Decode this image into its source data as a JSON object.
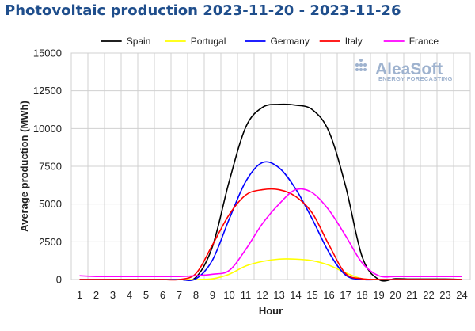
{
  "title": "Photovoltaic production 2023-11-20 - 2023-11-26",
  "logo": {
    "main": "AleaSoft",
    "sub": "ENERGY FORECASTING"
  },
  "chart_data": {
    "type": "line",
    "title": "Photovoltaic production 2023-11-20 - 2023-11-26",
    "xlabel": "Hour",
    "ylabel": "Average production (MWh)",
    "ylim": [
      0,
      15000
    ],
    "yticks": [
      0,
      2500,
      5000,
      7500,
      10000,
      12500,
      15000
    ],
    "grid": true,
    "legend_position": "top",
    "x": [
      1,
      2,
      3,
      4,
      5,
      6,
      7,
      8,
      9,
      10,
      11,
      12,
      13,
      14,
      15,
      16,
      17,
      18,
      19,
      20,
      21,
      22,
      23,
      24
    ],
    "series": [
      {
        "name": "Spain",
        "color": "#000000",
        "values": [
          0,
          0,
          0,
          0,
          0,
          0,
          0,
          150,
          2200,
          6500,
          10100,
          11400,
          11600,
          11550,
          11250,
          9800,
          6200,
          1500,
          0,
          50,
          30,
          30,
          30,
          0
        ]
      },
      {
        "name": "Portugal",
        "color": "#ffff00",
        "values": [
          0,
          0,
          0,
          0,
          0,
          0,
          0,
          0,
          50,
          350,
          900,
          1200,
          1350,
          1350,
          1250,
          950,
          450,
          50,
          0,
          0,
          0,
          0,
          0,
          0
        ]
      },
      {
        "name": "Germany",
        "color": "#0000ff",
        "values": [
          0,
          0,
          0,
          0,
          0,
          0,
          0,
          50,
          1300,
          4000,
          6500,
          7750,
          7400,
          6000,
          4000,
          1800,
          300,
          0,
          0,
          0,
          0,
          0,
          0,
          0
        ]
      },
      {
        "name": "Italy",
        "color": "#ff0000",
        "values": [
          0,
          0,
          0,
          0,
          0,
          0,
          0,
          400,
          2300,
          4300,
          5600,
          5950,
          5950,
          5500,
          4400,
          2300,
          400,
          50,
          0,
          0,
          0,
          0,
          0,
          0
        ]
      },
      {
        "name": "France",
        "color": "#ff00ff",
        "values": [
          250,
          200,
          200,
          200,
          200,
          200,
          200,
          250,
          350,
          600,
          2000,
          3700,
          5000,
          5950,
          5750,
          4600,
          2900,
          1100,
          250,
          200,
          200,
          200,
          200,
          200
        ]
      }
    ]
  }
}
